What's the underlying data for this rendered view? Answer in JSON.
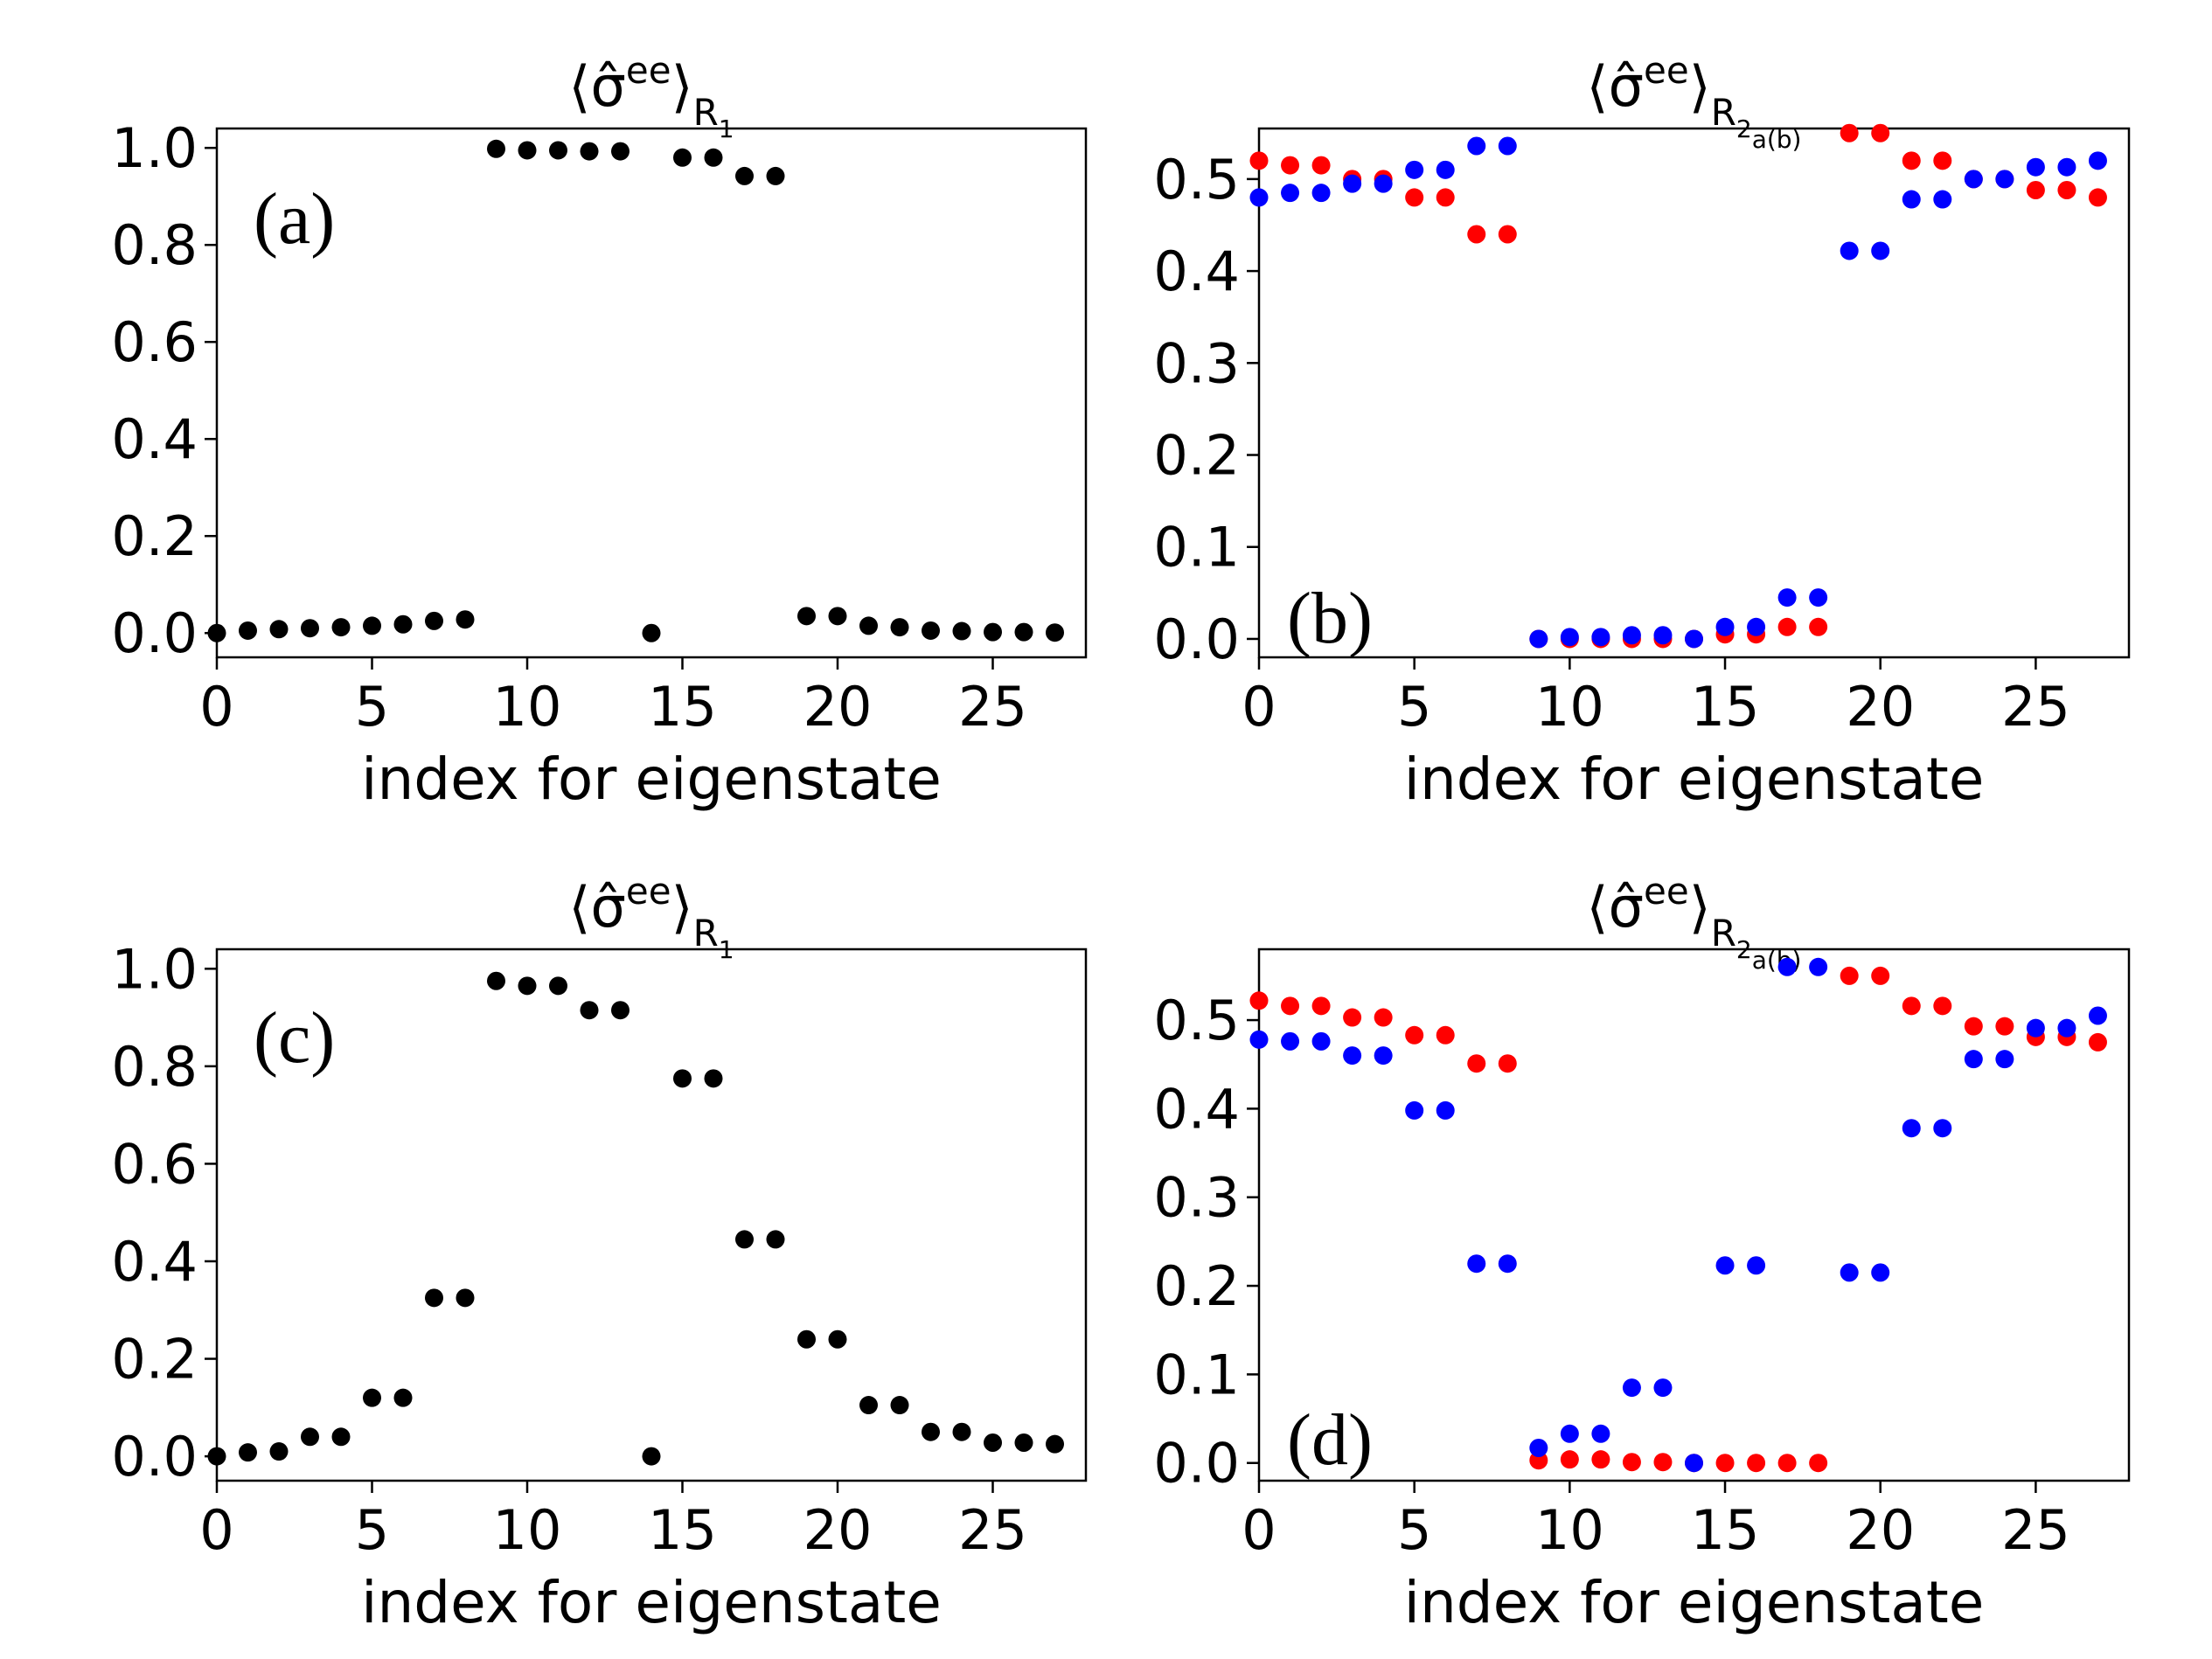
{
  "chart_data": [
    {
      "id": "a",
      "type": "scatter",
      "panel_label": "(a)",
      "title": {
        "prefix": "⟨σ̂",
        "sup": "ee",
        "close": "⟩",
        "sub": "R",
        "subsub": "1",
        "subsubsub": ""
      },
      "xlabel": "index for eigenstate",
      "ylabel": "",
      "xlim": [
        0,
        28
      ],
      "ylim": [
        -0.05,
        1.04
      ],
      "xticks": [
        0,
        5,
        10,
        15,
        20,
        25
      ],
      "xtick_labels": [
        "0",
        "5",
        "10",
        "15",
        "20",
        "25"
      ],
      "yticks": [
        0.0,
        0.2,
        0.4,
        0.6,
        0.8,
        1.0
      ],
      "ytick_labels": [
        "0.0",
        "0.2",
        "0.4",
        "0.6",
        "0.8",
        "1.0"
      ],
      "grid": false,
      "series": [
        {
          "name": "R1",
          "color": "#000000",
          "x": [
            0,
            1,
            2,
            3,
            4,
            5,
            6,
            7,
            8,
            9,
            10,
            11,
            12,
            13,
            14,
            15,
            16,
            17,
            18,
            19,
            20,
            21,
            22,
            23,
            24,
            25,
            26,
            27
          ],
          "y": [
            0.0,
            0.005,
            0.008,
            0.01,
            0.012,
            0.015,
            0.018,
            0.025,
            0.028,
            0.998,
            0.995,
            0.995,
            0.993,
            0.993,
            0.0,
            0.98,
            0.98,
            0.942,
            0.942,
            0.035,
            0.035,
            0.015,
            0.012,
            0.005,
            0.004,
            0.002,
            0.002,
            0.001
          ]
        }
      ]
    },
    {
      "id": "b",
      "type": "scatter",
      "panel_label": "(b)",
      "title": {
        "prefix": "⟨σ̂",
        "sup": "ee",
        "close": "⟩",
        "sub": "R",
        "subsub": "2",
        "subsubsub": "a(b)"
      },
      "xlabel": "index for eigenstate",
      "ylabel": "",
      "xlim": [
        0,
        28
      ],
      "ylim": [
        -0.02,
        0.555
      ],
      "xticks": [
        0,
        5,
        10,
        15,
        20,
        25
      ],
      "xtick_labels": [
        "0",
        "5",
        "10",
        "15",
        "20",
        "25"
      ],
      "yticks": [
        0.0,
        0.1,
        0.2,
        0.3,
        0.4,
        0.5
      ],
      "ytick_labels": [
        "0.0",
        "0.1",
        "0.2",
        "0.3",
        "0.4",
        "0.5"
      ],
      "grid": false,
      "series": [
        {
          "name": "R2a",
          "color": "#ff0000",
          "x": [
            0,
            1,
            2,
            3,
            4,
            5,
            6,
            7,
            8,
            9,
            10,
            11,
            12,
            13,
            14,
            15,
            16,
            17,
            18,
            19,
            20,
            21,
            22,
            23,
            24,
            25,
            26,
            27
          ],
          "y": [
            0.52,
            0.515,
            0.515,
            0.5,
            0.5,
            0.48,
            0.48,
            0.44,
            0.44,
            0.0,
            0.0,
            0.0,
            0.0,
            0.0,
            0.0,
            0.005,
            0.005,
            0.013,
            0.013,
            0.55,
            0.55,
            0.52,
            0.52,
            0.5,
            0.5,
            0.488,
            0.488,
            0.48
          ]
        },
        {
          "name": "R2b",
          "color": "#0000ff",
          "x": [
            0,
            1,
            2,
            3,
            4,
            5,
            6,
            7,
            8,
            9,
            10,
            11,
            12,
            13,
            14,
            15,
            16,
            17,
            18,
            19,
            20,
            21,
            22,
            23,
            24,
            25,
            26,
            27
          ],
          "y": [
            0.48,
            0.485,
            0.485,
            0.495,
            0.495,
            0.51,
            0.51,
            0.536,
            0.536,
            0.0,
            0.002,
            0.002,
            0.004,
            0.004,
            0.0,
            0.013,
            0.013,
            0.045,
            0.045,
            0.422,
            0.422,
            0.478,
            0.478,
            0.5,
            0.5,
            0.513,
            0.513,
            0.52
          ]
        }
      ]
    },
    {
      "id": "c",
      "type": "scatter",
      "panel_label": "(c)",
      "title": {
        "prefix": "⟨σ̂",
        "sup": "ee",
        "close": "⟩",
        "sub": "R",
        "subsub": "1",
        "subsubsub": ""
      },
      "xlabel": "index for eigenstate",
      "ylabel": "",
      "xlim": [
        0,
        28
      ],
      "ylim": [
        -0.05,
        1.04
      ],
      "xticks": [
        0,
        5,
        10,
        15,
        20,
        25
      ],
      "xtick_labels": [
        "0",
        "5",
        "10",
        "15",
        "20",
        "25"
      ],
      "yticks": [
        0.0,
        0.2,
        0.4,
        0.6,
        0.8,
        1.0
      ],
      "ytick_labels": [
        "0.0",
        "0.2",
        "0.4",
        "0.6",
        "0.8",
        "1.0"
      ],
      "grid": false,
      "series": [
        {
          "name": "R1",
          "color": "#000000",
          "x": [
            0,
            1,
            2,
            3,
            4,
            5,
            6,
            7,
            8,
            9,
            10,
            11,
            12,
            13,
            14,
            15,
            16,
            17,
            18,
            19,
            20,
            21,
            22,
            23,
            24,
            25,
            26,
            27
          ],
          "y": [
            0.0,
            0.008,
            0.01,
            0.04,
            0.04,
            0.12,
            0.12,
            0.325,
            0.325,
            0.975,
            0.965,
            0.965,
            0.915,
            0.915,
            0.0,
            0.775,
            0.775,
            0.445,
            0.445,
            0.24,
            0.24,
            0.105,
            0.105,
            0.05,
            0.05,
            0.028,
            0.028,
            0.025
          ]
        }
      ]
    },
    {
      "id": "d",
      "type": "scatter",
      "panel_label": "(d)",
      "title": {
        "prefix": "⟨σ̂",
        "sup": "ee",
        "close": "⟩",
        "sub": "R",
        "subsub": "2",
        "subsubsub": "a(b)"
      },
      "xlabel": "index for eigenstate",
      "ylabel": "",
      "xlim": [
        0,
        28
      ],
      "ylim": [
        -0.02,
        0.58
      ],
      "xticks": [
        0,
        5,
        10,
        15,
        20,
        25
      ],
      "xtick_labels": [
        "0",
        "5",
        "10",
        "15",
        "20",
        "25"
      ],
      "yticks": [
        0.0,
        0.1,
        0.2,
        0.3,
        0.4,
        0.5
      ],
      "ytick_labels": [
        "0.0",
        "0.1",
        "0.2",
        "0.3",
        "0.4",
        "0.5"
      ],
      "grid": false,
      "series": [
        {
          "name": "R2a",
          "color": "#ff0000",
          "x": [
            0,
            1,
            2,
            3,
            4,
            5,
            6,
            7,
            8,
            9,
            10,
            11,
            12,
            13,
            14,
            15,
            16,
            17,
            18,
            19,
            20,
            21,
            22,
            23,
            24,
            25,
            26,
            27
          ],
          "y": [
            0.522,
            0.516,
            0.516,
            0.503,
            0.503,
            0.483,
            0.483,
            0.451,
            0.451,
            0.003,
            0.004,
            0.004,
            0.001,
            0.001,
            0.0,
            0.0,
            0.0,
            0.0,
            0.0,
            0.55,
            0.55,
            0.516,
            0.516,
            0.493,
            0.493,
            0.481,
            0.481,
            0.475
          ]
        },
        {
          "name": "R2b",
          "color": "#0000ff",
          "x": [
            0,
            1,
            2,
            3,
            4,
            5,
            6,
            7,
            8,
            9,
            10,
            11,
            12,
            13,
            14,
            15,
            16,
            17,
            18,
            19,
            20,
            21,
            22,
            23,
            24,
            25,
            26,
            27
          ],
          "y": [
            0.478,
            0.476,
            0.476,
            0.46,
            0.46,
            0.398,
            0.398,
            0.225,
            0.225,
            0.017,
            0.033,
            0.033,
            0.085,
            0.085,
            0.0,
            0.223,
            0.223,
            0.56,
            0.56,
            0.215,
            0.215,
            0.378,
            0.378,
            0.456,
            0.456,
            0.491,
            0.491,
            0.505
          ]
        }
      ]
    }
  ]
}
